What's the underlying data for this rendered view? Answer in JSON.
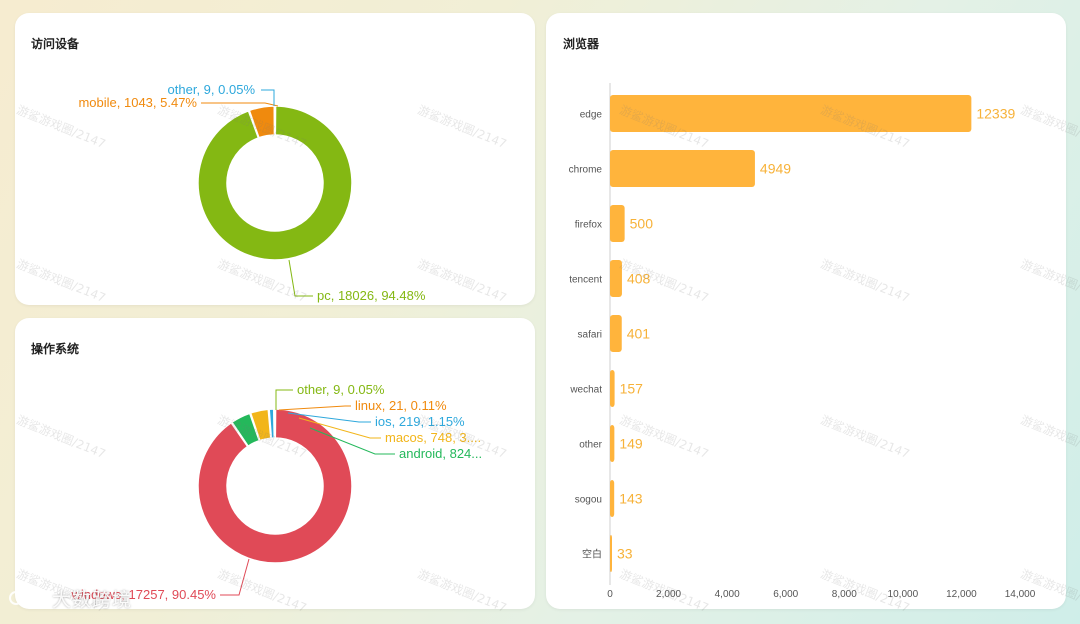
{
  "cards": {
    "device": {
      "title": "访问设备"
    },
    "os": {
      "title": "操作系统"
    },
    "browser": {
      "title": "浏览器"
    }
  },
  "chart_data": [
    {
      "id": "device",
      "type": "pie",
      "title": "访问设备",
      "slices": [
        {
          "name": "pc",
          "value": 18026,
          "label": "pc, 18026, 94.48%",
          "color": "#84b813"
        },
        {
          "name": "mobile",
          "value": 1043,
          "label": "mobile, 1043, 5.47%",
          "color": "#f08a0e"
        },
        {
          "name": "other",
          "value": 9,
          "label": "other, 9, 0.05%",
          "color": "#2ea8dc"
        }
      ]
    },
    {
      "id": "os",
      "type": "pie",
      "title": "操作系统",
      "slices": [
        {
          "name": "windows",
          "value": 17257,
          "label": "windows, 17257, 90.45%",
          "color": "#e04a57"
        },
        {
          "name": "android",
          "value": 824,
          "label": "android, 824...",
          "color": "#24b85b"
        },
        {
          "name": "macos",
          "value": 748,
          "label": "macos, 748, 3....",
          "color": "#f2b51a"
        },
        {
          "name": "ios",
          "value": 219,
          "label": "ios, 219, 1.15%",
          "color": "#2ea8dc"
        },
        {
          "name": "linux",
          "value": 21,
          "label": "linux, 21, 0.11%",
          "color": "#f08a0e"
        },
        {
          "name": "other",
          "value": 9,
          "label": "other, 9, 0.05%",
          "color": "#84b813"
        }
      ]
    },
    {
      "id": "browser",
      "type": "bar",
      "orientation": "horizontal",
      "title": "浏览器",
      "categories": [
        "edge",
        "chrome",
        "firefox",
        "tencent",
        "safari",
        "wechat",
        "other",
        "sogou",
        "空白"
      ],
      "values": [
        12339,
        4949,
        500,
        408,
        401,
        157,
        149,
        143,
        33
      ],
      "xlim": [
        0,
        14000
      ],
      "xticks": [
        "0",
        "2,000",
        "4,000",
        "6,000",
        "8,000",
        "10,000",
        "12,000",
        "14,000"
      ],
      "color": "#ffb43c",
      "label_color": "#f7b239"
    }
  ],
  "watermark": "游鲨游戏圈/2147",
  "brand": "大数跨境"
}
